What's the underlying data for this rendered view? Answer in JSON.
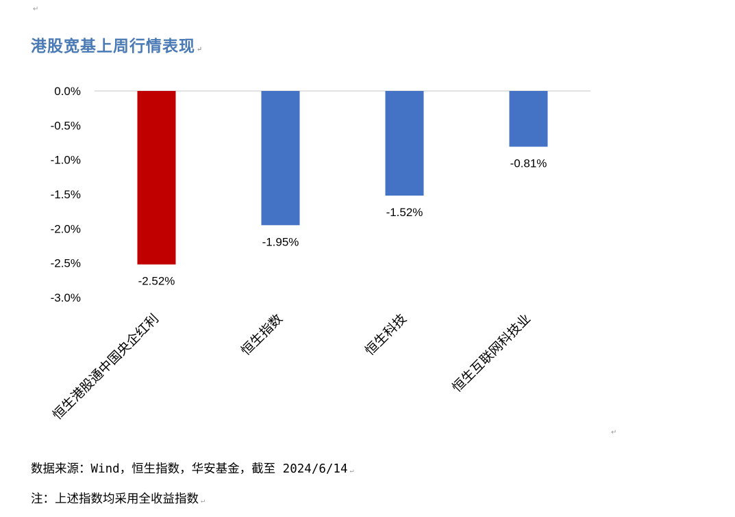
{
  "chart_data": {
    "type": "bar",
    "title": "港股宽基上周行情表现",
    "categories": [
      "恒生港股通中国央企红利",
      "恒生指数",
      "恒生科技",
      "恒生互联网科技业"
    ],
    "values": [
      -2.52,
      -1.95,
      -1.52,
      -0.81
    ],
    "data_labels": [
      "-2.52%",
      "-1.95%",
      "-1.52%",
      "-0.81%"
    ],
    "ylim": [
      -3.0,
      0.0
    ],
    "yticks": [
      "0.0%",
      "-0.5%",
      "-1.0%",
      "-1.5%",
      "-2.0%",
      "-2.5%",
      "-3.0%"
    ],
    "xlabel": "",
    "ylabel": "",
    "grid": false,
    "colors": [
      "#c00000",
      "#4472c4",
      "#4472c4",
      "#4472c4"
    ]
  },
  "notes": {
    "source": "数据来源：Wind，恒生指数，华安基金，截至 2024/6/14",
    "note": "注：上述指数均采用全收益指数"
  },
  "para_mark": "↵"
}
